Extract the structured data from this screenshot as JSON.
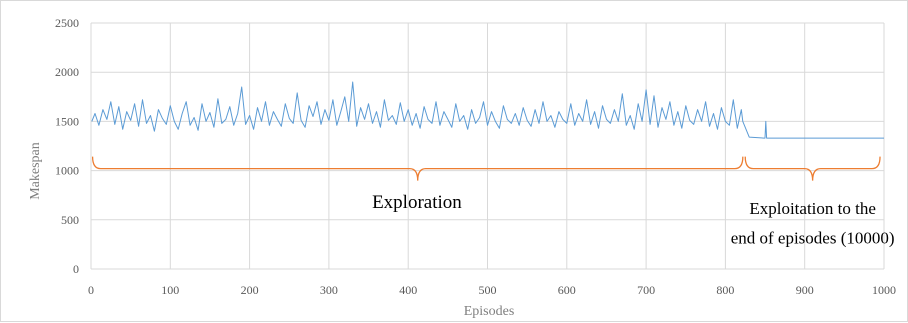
{
  "chart_data": {
    "type": "line",
    "title": "",
    "xlabel": "Episodes",
    "ylabel": "Makespan",
    "xlim": [
      0,
      1000
    ],
    "ylim": [
      0,
      2500
    ],
    "x_ticks": [
      "0",
      "100",
      "200",
      "300",
      "400",
      "500",
      "600",
      "700",
      "800",
      "900",
      "1000"
    ],
    "y_ticks": [
      "0",
      "500",
      "1000",
      "1500",
      "2000",
      "2500"
    ],
    "grid": true,
    "legend": "none",
    "series": [
      {
        "color": "#5b9bd5",
        "x": [
          1,
          5,
          10,
          15,
          20,
          25,
          30,
          35,
          40,
          45,
          50,
          55,
          60,
          65,
          70,
          75,
          80,
          85,
          90,
          95,
          100,
          105,
          110,
          115,
          120,
          125,
          130,
          135,
          140,
          145,
          150,
          155,
          160,
          165,
          170,
          175,
          180,
          185,
          190,
          195,
          200,
          205,
          210,
          215,
          220,
          225,
          230,
          235,
          240,
          245,
          250,
          255,
          260,
          265,
          270,
          275,
          280,
          285,
          290,
          295,
          300,
          305,
          310,
          315,
          320,
          325,
          330,
          335,
          340,
          345,
          350,
          355,
          360,
          365,
          370,
          375,
          380,
          385,
          390,
          395,
          400,
          405,
          410,
          415,
          420,
          425,
          430,
          435,
          440,
          445,
          450,
          455,
          460,
          465,
          470,
          475,
          480,
          485,
          490,
          495,
          500,
          505,
          510,
          515,
          520,
          525,
          530,
          535,
          540,
          545,
          550,
          555,
          560,
          565,
          570,
          575,
          580,
          585,
          590,
          595,
          600,
          605,
          610,
          615,
          620,
          625,
          630,
          635,
          640,
          645,
          650,
          655,
          660,
          665,
          670,
          675,
          680,
          685,
          690,
          695,
          700,
          705,
          710,
          715,
          720,
          725,
          730,
          735,
          740,
          745,
          750,
          755,
          760,
          765,
          770,
          775,
          780,
          785,
          790,
          795,
          800,
          805,
          810,
          815,
          820,
          822,
          830,
          849,
          850,
          851,
          852,
          853,
          900,
          950,
          1000
        ],
        "values": [
          1500,
          1580,
          1460,
          1620,
          1520,
          1700,
          1470,
          1650,
          1420,
          1600,
          1510,
          1680,
          1450,
          1720,
          1480,
          1560,
          1400,
          1620,
          1530,
          1470,
          1660,
          1500,
          1420,
          1580,
          1700,
          1460,
          1540,
          1410,
          1680,
          1500,
          1590,
          1440,
          1730,
          1480,
          1520,
          1650,
          1460,
          1580,
          1850,
          1470,
          1560,
          1420,
          1640,
          1500,
          1700,
          1460,
          1600,
          1520,
          1450,
          1680,
          1530,
          1480,
          1790,
          1510,
          1440,
          1660,
          1550,
          1700,
          1470,
          1620,
          1510,
          1720,
          1460,
          1600,
          1750,
          1500,
          1900,
          1450,
          1640,
          1520,
          1680,
          1480,
          1600,
          1440,
          1720,
          1510,
          1560,
          1470,
          1690,
          1500,
          1620,
          1460,
          1580,
          1430,
          1650,
          1520,
          1480,
          1700,
          1460,
          1600,
          1520,
          1440,
          1680,
          1500,
          1560,
          1420,
          1620,
          1480,
          1540,
          1700,
          1460,
          1600,
          1500,
          1430,
          1660,
          1520,
          1480,
          1580,
          1460,
          1640,
          1510,
          1450,
          1620,
          1480,
          1700,
          1500,
          1560,
          1440,
          1600,
          1520,
          1480,
          1680,
          1460,
          1580,
          1500,
          1720,
          1470,
          1600,
          1430,
          1660,
          1520,
          1480,
          1620,
          1500,
          1780,
          1460,
          1560,
          1420,
          1680,
          1500,
          1820,
          1470,
          1760,
          1440,
          1640,
          1520,
          1700,
          1460,
          1600,
          1430,
          1660,
          1510,
          1470,
          1620,
          1500,
          1700,
          1450,
          1580,
          1420,
          1640,
          1500,
          1460,
          1720,
          1430,
          1620,
          1500,
          1340,
          1330,
          1330,
          1500,
          1330,
          1330,
          1330,
          1330,
          1330
        ]
      }
    ],
    "annotations": [
      {
        "text": "Exploration",
        "x": 411,
        "y": 620
      },
      {
        "text": "Exploitation to the",
        "x": 910,
        "y": 560
      },
      {
        "text": "end of episodes (10000)",
        "x": 910,
        "y": 260
      }
    ],
    "braces": [
      {
        "color": "#ed7d31",
        "x_start": 2,
        "x_end": 822,
        "y": 1020
      },
      {
        "color": "#ed7d31",
        "x_start": 825,
        "x_end": 995,
        "y": 1020
      }
    ]
  }
}
